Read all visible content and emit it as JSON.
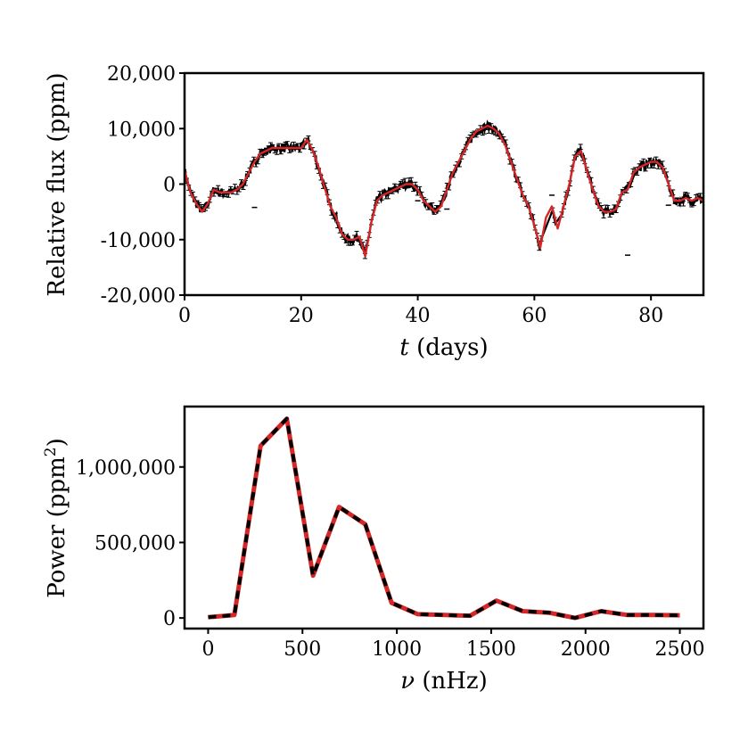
{
  "colors": {
    "model": "#d62728",
    "data": "#000000",
    "axes": "#000000"
  },
  "chart_data": [
    {
      "id": "lightcurve",
      "type": "line",
      "title": "",
      "xlabel_var": "t",
      "xlabel_unit": " (days)",
      "ylabel": "Relative flux (ppm)",
      "xlim": [
        0,
        89
      ],
      "ylim": [
        -20000,
        20000
      ],
      "xticks": [
        0,
        20,
        40,
        60,
        80
      ],
      "xtick_labels": [
        "0",
        "20",
        "40",
        "60",
        "80"
      ],
      "yticks": [
        -20000,
        -10000,
        0,
        10000,
        20000
      ],
      "ytick_labels": [
        "-20,000",
        "-10,000",
        "0",
        "10,000",
        "20,000"
      ],
      "series": [
        {
          "name": "model",
          "style": "solid-red",
          "x": [
            0,
            1,
            2,
            3,
            4,
            5,
            6,
            7,
            8,
            9,
            10,
            11,
            12,
            13,
            14,
            15,
            16,
            17,
            18,
            19,
            20,
            21,
            22,
            23,
            24,
            25,
            26,
            27,
            28,
            29,
            30,
            31,
            32,
            33,
            34,
            35,
            36,
            37,
            38,
            39,
            40,
            41,
            42,
            43,
            44,
            45,
            46,
            47,
            48,
            49,
            50,
            51,
            52,
            53,
            54,
            55,
            56,
            57,
            58,
            59,
            60,
            61,
            62,
            63,
            64,
            65,
            66,
            67,
            68,
            69,
            70,
            71,
            72,
            73,
            74,
            75,
            76,
            77,
            78,
            79,
            80,
            81,
            82,
            83,
            84,
            85,
            86,
            87,
            88,
            89
          ],
          "y": [
            2500,
            -1500,
            -3500,
            -5000,
            -3500,
            -1000,
            -1500,
            -1500,
            -1500,
            -1000,
            0,
            2000,
            4000,
            5500,
            6000,
            6500,
            6500,
            6500,
            6500,
            6500,
            6500,
            8000,
            6000,
            3000,
            -500,
            -4000,
            -6000,
            -9000,
            -10000,
            -10000,
            -9500,
            -13000,
            -7000,
            -3000,
            -2000,
            -1500,
            -1000,
            -500,
            0,
            0,
            -1000,
            -3000,
            -4000,
            -5000,
            -4000,
            -1000,
            2000,
            4000,
            6000,
            8000,
            9500,
            10000,
            10500,
            10000,
            9000,
            7000,
            4000,
            1000,
            -2000,
            -4000,
            -7500,
            -11500,
            -6000,
            -4000,
            -8000,
            -4000,
            0,
            5000,
            6000,
            2500,
            -1000,
            -4000,
            -5000,
            -5000,
            -4500,
            -1500,
            -1000,
            2000,
            3000,
            3500,
            4000,
            4000,
            3000,
            0,
            -3000,
            -3000,
            -2500,
            -3000,
            -2500,
            -3000
          ]
        },
        {
          "name": "data",
          "style": "black-errorbars",
          "scatter": 1000,
          "outliers": [
            {
              "x": 12,
              "y": -4200
            },
            {
              "x": 40,
              "y": -3000
            },
            {
              "x": 45,
              "y": -4500
            },
            {
              "x": 76,
              "y": -12800
            },
            {
              "x": 63,
              "y": -2000
            },
            {
              "x": 83,
              "y": -3800
            }
          ]
        }
      ]
    },
    {
      "id": "powerspectrum",
      "type": "line",
      "title": "",
      "xlabel_var": "ν",
      "xlabel_unit": " (nHz)",
      "ylabel_main": "Power (ppm",
      "ylabel_sup": "2",
      "ylabel_end": ")",
      "xlim": [
        -125,
        2625
      ],
      "ylim": [
        -70000,
        1400000
      ],
      "xticks": [
        0,
        500,
        1000,
        1500,
        2000,
        2500
      ],
      "xtick_labels": [
        "0",
        "500",
        "1000",
        "1500",
        "2000",
        "2500"
      ],
      "yticks": [
        0,
        500000,
        1000000
      ],
      "ytick_labels": [
        "0",
        "500,000",
        "1,000,000"
      ],
      "series": [
        {
          "name": "power (red)",
          "style": "solid-red",
          "x": [
            0,
            139,
            278,
            417,
            556,
            694,
            833,
            972,
            1111,
            1250,
            1389,
            1528,
            1667,
            1806,
            1944,
            2083,
            2222,
            2361,
            2500
          ],
          "y": [
            5000,
            20000,
            1140000,
            1320000,
            280000,
            735000,
            620000,
            100000,
            25000,
            20000,
            15000,
            115000,
            45000,
            35000,
            0,
            45000,
            20000,
            20000,
            18000
          ]
        },
        {
          "name": "power (black dashed)",
          "style": "dashed-black",
          "x": [
            0,
            139,
            278,
            417,
            556,
            694,
            833,
            972,
            1111,
            1250,
            1389,
            1528,
            1667,
            1806,
            1944,
            2083,
            2222,
            2361,
            2500
          ],
          "y": [
            5000,
            20000,
            1140000,
            1320000,
            280000,
            735000,
            620000,
            100000,
            25000,
            20000,
            15000,
            115000,
            45000,
            35000,
            0,
            45000,
            20000,
            20000,
            18000
          ]
        }
      ]
    }
  ]
}
